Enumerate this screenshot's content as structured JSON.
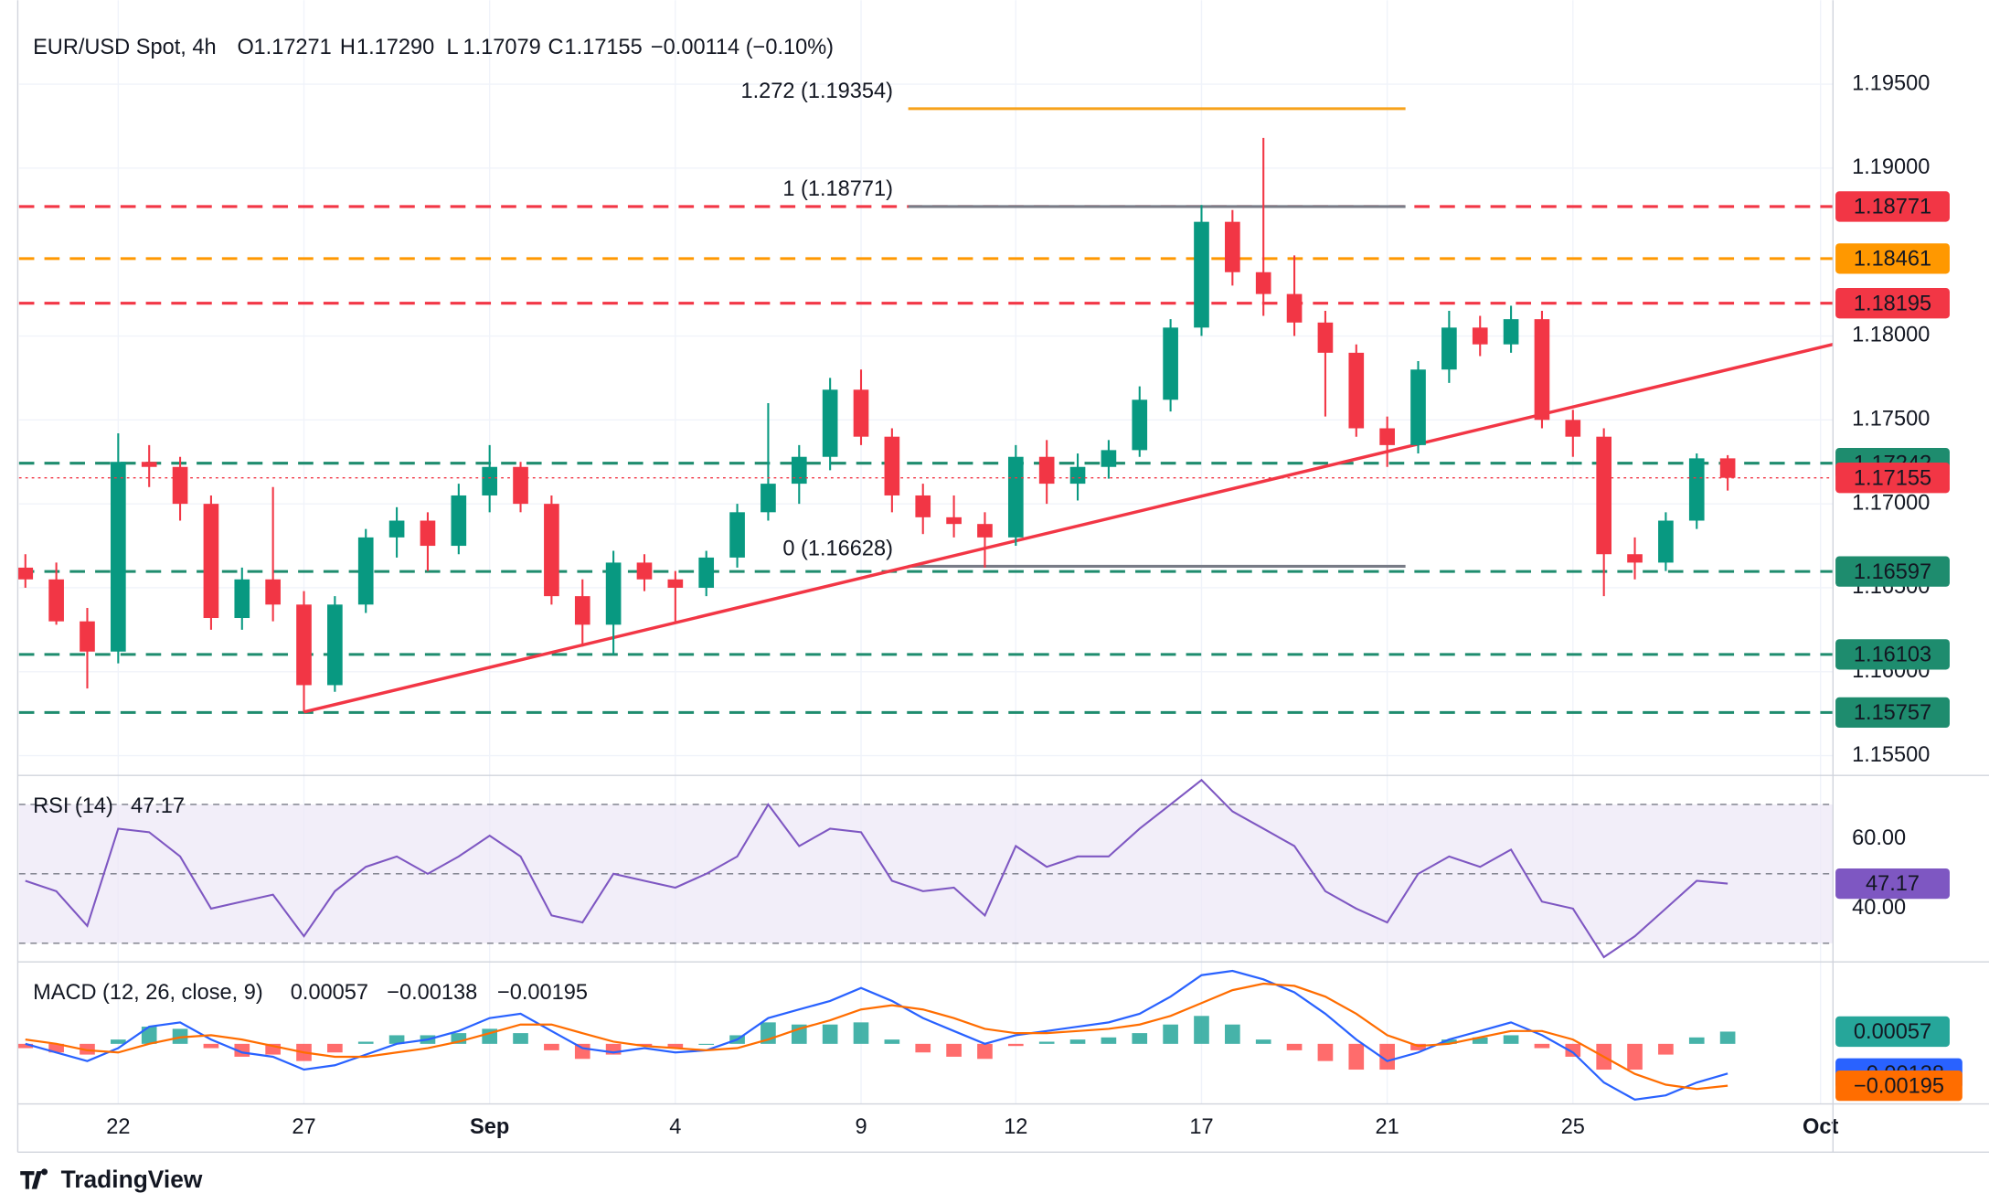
{
  "chart_data": [
    {
      "type": "candlestick",
      "title": "EUR/USD Spot, 4h",
      "ohlc_legend": [
        {
          "key": "O",
          "text": "1.17271"
        },
        {
          "key": "H",
          "text": "1.17290"
        },
        {
          "key": "L",
          "text": "1.17079"
        },
        {
          "key": "C",
          "text": "1.17155"
        }
      ],
      "change": "−0.00114 (−0.10%)",
      "categories": [
        null,
        null,
        null,
        "22",
        null,
        null,
        null,
        null,
        null,
        "27",
        null,
        null,
        null,
        null,
        null,
        "Sep",
        null,
        null,
        null,
        null,
        null,
        "4",
        null,
        null,
        null,
        null,
        null,
        "9",
        null,
        null,
        null,
        null,
        "12",
        null,
        null,
        null,
        null,
        null,
        "17",
        null,
        null,
        null,
        null,
        null,
        "21",
        null,
        null,
        null,
        null,
        null,
        "25",
        null,
        null,
        null,
        null,
        null,
        null,
        null,
        "Oct"
      ],
      "open": [
        1.1662,
        1.1655,
        1.163,
        1.1612,
        1.1725,
        1.1722,
        1.17,
        1.1632,
        1.1655,
        1.164,
        1.1592,
        1.164,
        1.168,
        1.169,
        1.1675,
        1.1705,
        1.1722,
        1.17,
        1.1645,
        1.1628,
        1.1665,
        1.1655,
        1.165,
        1.1668,
        1.1695,
        1.1712,
        1.1728,
        1.1768,
        1.174,
        1.1705,
        1.1692,
        1.1688,
        1.168,
        1.1728,
        1.1712,
        1.1722,
        1.1732,
        1.1762,
        1.1805,
        1.1868,
        1.1838,
        1.1825,
        1.1808,
        1.179,
        1.1745,
        1.1735,
        1.178,
        1.1805,
        1.1795,
        1.181,
        1.175,
        1.174,
        1.167,
        1.1665,
        1.169,
        1.17271,
        null,
        null,
        null
      ],
      "high": [
        1.167,
        1.1665,
        1.1638,
        1.1742,
        1.1735,
        1.1728,
        1.1705,
        1.1662,
        1.171,
        1.1648,
        1.1645,
        1.1685,
        1.1698,
        1.1695,
        1.1712,
        1.1735,
        1.1725,
        1.1705,
        1.1655,
        1.1672,
        1.167,
        1.166,
        1.1672,
        1.17,
        1.176,
        1.1735,
        1.1775,
        1.178,
        1.1745,
        1.1712,
        1.1705,
        1.1695,
        1.1735,
        1.1738,
        1.173,
        1.1738,
        1.177,
        1.181,
        1.1878,
        1.1875,
        1.1918,
        1.1848,
        1.1815,
        1.1795,
        1.1752,
        1.1785,
        1.1815,
        1.1812,
        1.1818,
        1.1815,
        1.1756,
        1.1745,
        1.168,
        1.1695,
        1.173,
        1.1729,
        null,
        null,
        null
      ],
      "low": [
        1.165,
        1.1628,
        1.159,
        1.1605,
        1.171,
        1.169,
        1.1625,
        1.1625,
        1.163,
        1.1576,
        1.1588,
        1.1635,
        1.1668,
        1.166,
        1.167,
        1.1695,
        1.1695,
        1.164,
        1.1615,
        1.161,
        1.1648,
        1.163,
        1.1645,
        1.1662,
        1.169,
        1.17,
        1.172,
        1.1735,
        1.1695,
        1.1682,
        1.168,
        1.1662,
        1.1675,
        1.17,
        1.1702,
        1.1715,
        1.1728,
        1.1755,
        1.18,
        1.183,
        1.1812,
        1.18,
        1.1752,
        1.174,
        1.1722,
        1.173,
        1.1772,
        1.1788,
        1.179,
        1.1745,
        1.1728,
        1.1645,
        1.1655,
        1.166,
        1.1685,
        1.17079,
        null,
        null,
        null
      ],
      "close": [
        1.1655,
        1.163,
        1.1612,
        1.1725,
        1.1722,
        1.17,
        1.1632,
        1.1655,
        1.164,
        1.1592,
        1.164,
        1.168,
        1.169,
        1.1675,
        1.1705,
        1.1722,
        1.17,
        1.1645,
        1.1628,
        1.1665,
        1.1655,
        1.165,
        1.1668,
        1.1695,
        1.1712,
        1.1728,
        1.1768,
        1.174,
        1.1705,
        1.1692,
        1.1688,
        1.168,
        1.1728,
        1.1712,
        1.1722,
        1.1732,
        1.1762,
        1.1805,
        1.1868,
        1.1838,
        1.1825,
        1.1808,
        1.179,
        1.1745,
        1.1735,
        1.178,
        1.1805,
        1.1795,
        1.181,
        1.175,
        1.174,
        1.167,
        1.1665,
        1.169,
        1.17271,
        1.17155,
        null,
        null,
        null
      ],
      "up_color": "#089981",
      "down_color": "#f23645",
      "ylim": [
        1.1539,
        1.2
      ],
      "yticks": [
        {
          "value": 1.195,
          "label": "1.19500"
        },
        {
          "value": 1.19,
          "label": "1.19000"
        },
        {
          "value": 1.18,
          "label": "1.18000"
        },
        {
          "value": 1.175,
          "label": "1.17500"
        },
        {
          "value": 1.17,
          "label": "1.17000"
        },
        {
          "value": 1.165,
          "label": "1.16500"
        },
        {
          "value": 1.16,
          "label": "1.16000"
        },
        {
          "value": 1.155,
          "label": "1.15500"
        }
      ],
      "grid": true,
      "levels": [
        {
          "value": 1.18771,
          "color": "#f23645"
        },
        {
          "value": 1.18461,
          "color": "#ff9800"
        },
        {
          "value": 1.18195,
          "color": "#f23645"
        },
        {
          "value": 1.17242,
          "color": "#1e8c6e"
        },
        {
          "value": 1.16597,
          "color": "#1e8c6e"
        },
        {
          "value": 1.16103,
          "color": "#1e8c6e"
        },
        {
          "value": 1.15757,
          "color": "#1e8c6e"
        }
      ],
      "fib_levels": [
        {
          "label": "1.272 (1.19354)",
          "value": 1.19354,
          "color": "#f7a21b"
        },
        {
          "label": "1 (1.18771)",
          "value": 1.18771,
          "color": "#787b86"
        },
        {
          "label": "0 (1.16628)",
          "value": 1.16628,
          "color": "#787b86"
        }
      ],
      "trendline": {
        "start": 1.1576,
        "end": 1.1795,
        "color": "#f23645"
      },
      "last_price_color": "#f23645"
    },
    {
      "type": "line",
      "title": "RSI (14)",
      "values": [
        48,
        45,
        35,
        63,
        62,
        55,
        40,
        42,
        44,
        32,
        45,
        52,
        55,
        50,
        55,
        61,
        55,
        38,
        36,
        50,
        48,
        46,
        50,
        55,
        70,
        58,
        63,
        62,
        48,
        45,
        46,
        38,
        58,
        52,
        55,
        55,
        63,
        70,
        77,
        68,
        63,
        58,
        45,
        40,
        36,
        50,
        55,
        52,
        57,
        42,
        40,
        26,
        32,
        40,
        48,
        47.17,
        null,
        null,
        null
      ],
      "color": "#7e57c2",
      "ylim": [
        25,
        78
      ],
      "yticks": [
        {
          "value": 60,
          "label": "60.00"
        },
        {
          "value": 40,
          "label": "40.00"
        }
      ],
      "levels": [
        70,
        50,
        30
      ],
      "band_color": "#ede7f6"
    },
    {
      "type": "macd",
      "title": "MACD (12, 26, close, 9)",
      "histogram": {
        "values": [
          -0.0002,
          -0.0004,
          -0.0005,
          0.0002,
          0.0008,
          0.0007,
          -0.0002,
          -0.0006,
          -0.0005,
          -0.0008,
          -0.0004,
          0.0001,
          0.0004,
          0.0004,
          0.0005,
          0.0007,
          0.0005,
          -0.0003,
          -0.0007,
          -0.0005,
          -0.0001,
          -0.0002,
          0.0,
          0.0004,
          0.001,
          0.0009,
          0.0009,
          0.001,
          0.0002,
          -0.0004,
          -0.0006,
          -0.0007,
          -0.0001,
          0.0001,
          0.0002,
          0.0003,
          0.0005,
          0.0009,
          0.0013,
          0.0009,
          0.0002,
          -0.0003,
          -0.0008,
          -0.0012,
          -0.0012,
          -0.0003,
          0.0002,
          0.0003,
          0.0004,
          -0.0002,
          -0.0006,
          -0.0012,
          -0.0012,
          -0.0005,
          0.0003,
          0.00057,
          null,
          null,
          null
        ],
        "pos_color": "#26a69a",
        "neg_color": "#ff5252"
      },
      "macd": {
        "color": "#2962ff",
        "value_label": "−0.00138",
        "values": [
          0.0,
          -0.0004,
          -0.0008,
          -0.0002,
          0.0008,
          0.001,
          0.0002,
          -0.0004,
          -0.0006,
          -0.0012,
          -0.001,
          -0.0005,
          0.0,
          0.0002,
          0.0006,
          0.0012,
          0.0014,
          0.0006,
          -0.0002,
          -0.0004,
          -0.0002,
          -0.0004,
          -0.0003,
          0.0002,
          0.0012,
          0.0016,
          0.002,
          0.0026,
          0.002,
          0.0012,
          0.0006,
          0.0,
          0.0004,
          0.0006,
          0.0008,
          0.001,
          0.0014,
          0.0022,
          0.0032,
          0.0034,
          0.003,
          0.0024,
          0.0014,
          0.0002,
          -0.0008,
          -0.0004,
          0.0002,
          0.0006,
          0.001,
          0.0004,
          -0.0004,
          -0.0018,
          -0.0026,
          -0.0024,
          -0.0018,
          -0.00138,
          null,
          null,
          null
        ]
      },
      "signal": {
        "color": "#ff6d00",
        "value_label": "−0.00195",
        "values": [
          0.0002,
          0.0,
          -0.0003,
          -0.0004,
          0.0,
          0.0003,
          0.0004,
          0.0002,
          -0.0001,
          -0.0004,
          -0.0006,
          -0.0006,
          -0.0004,
          -0.0002,
          0.0001,
          0.0005,
          0.0009,
          0.0009,
          0.0005,
          0.0001,
          -0.0001,
          -0.0002,
          -0.0003,
          -0.0002,
          0.0002,
          0.0007,
          0.0011,
          0.0016,
          0.0018,
          0.0016,
          0.0012,
          0.0007,
          0.0005,
          0.0005,
          0.0006,
          0.0007,
          0.0009,
          0.0013,
          0.0019,
          0.0025,
          0.0028,
          0.0027,
          0.0022,
          0.0014,
          0.0004,
          -0.0001,
          0.0,
          0.0003,
          0.0006,
          0.0006,
          0.0002,
          -0.0006,
          -0.0014,
          -0.0019,
          -0.0021,
          -0.00195,
          null,
          null,
          null
        ]
      },
      "ylim": [
        -0.0028,
        0.0037
      ]
    }
  ],
  "branding": "TradingView"
}
